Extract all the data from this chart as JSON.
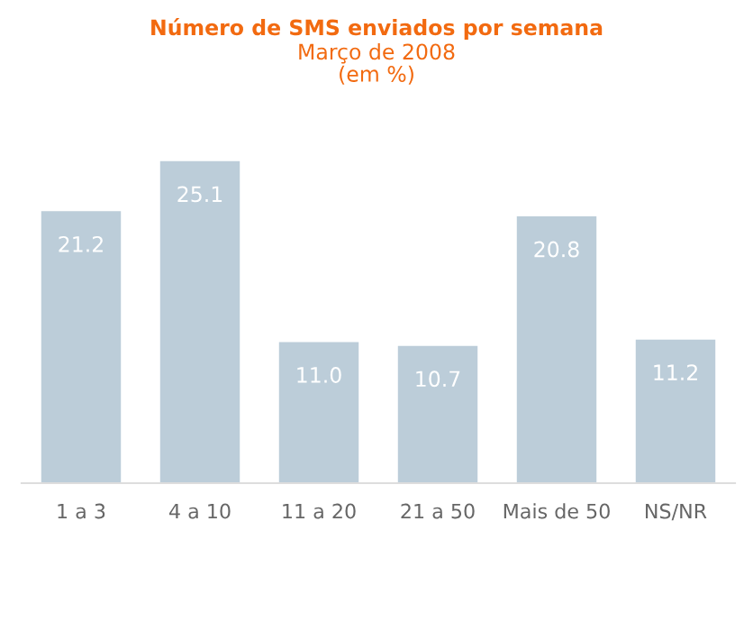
{
  "chart_data": {
    "type": "bar",
    "title": "Número de SMS enviados por semana",
    "subtitle": "Março de 2008\n(em %)",
    "categories": [
      "1 a 3",
      "4 a 10",
      "11 a 20",
      "21 a 50",
      "Mais de 50",
      "NS/NR"
    ],
    "values": [
      21.2,
      25.1,
      11.0,
      10.7,
      20.8,
      11.2
    ],
    "color": "#bccdd9",
    "value_labels": [
      "21.2",
      "25.1",
      "11.0",
      "10.7",
      "20.8",
      "11.2"
    ],
    "grid": false,
    "legend": false
  }
}
